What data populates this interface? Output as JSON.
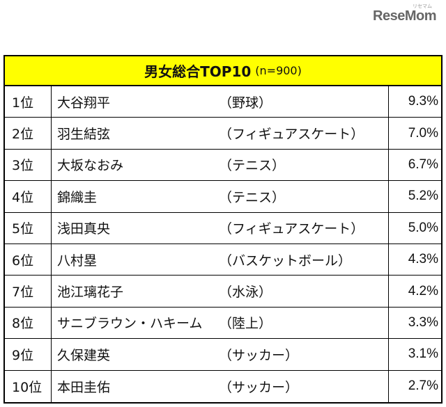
{
  "logo": {
    "text": "ReseMom",
    "sub": "リセマム"
  },
  "table": {
    "title": "男女総合TOP10",
    "sample": "(n=900)",
    "rows": [
      {
        "rank": "1位",
        "name": "大谷翔平",
        "sport": "（野球）",
        "pct": "9.3%"
      },
      {
        "rank": "2位",
        "name": "羽生結弦",
        "sport": "（フィギュアスケート）",
        "pct": "7.0%"
      },
      {
        "rank": "3位",
        "name": "大坂なおみ",
        "sport": "（テニス）",
        "pct": "6.7%"
      },
      {
        "rank": "4位",
        "name": "錦織圭",
        "sport": "（テニス）",
        "pct": "5.2%"
      },
      {
        "rank": "5位",
        "name": "浅田真央",
        "sport": "（フィギュアスケート）",
        "pct": "5.0%"
      },
      {
        "rank": "6位",
        "name": "八村塁",
        "sport": "（バスケットボール）",
        "pct": "4.3%"
      },
      {
        "rank": "7位",
        "name": "池江璃花子",
        "sport": "（水泳）",
        "pct": "4.2%"
      },
      {
        "rank": "8位",
        "name": "サニブラウン・ハキーム",
        "sport": "（陸上）",
        "pct": "3.3%"
      },
      {
        "rank": "9位",
        "name": "久保建英",
        "sport": "（サッカー）",
        "pct": "3.1%"
      },
      {
        "rank": "10位",
        "name": "本田圭佑",
        "sport": "（サッカー）",
        "pct": "2.7%"
      }
    ]
  }
}
